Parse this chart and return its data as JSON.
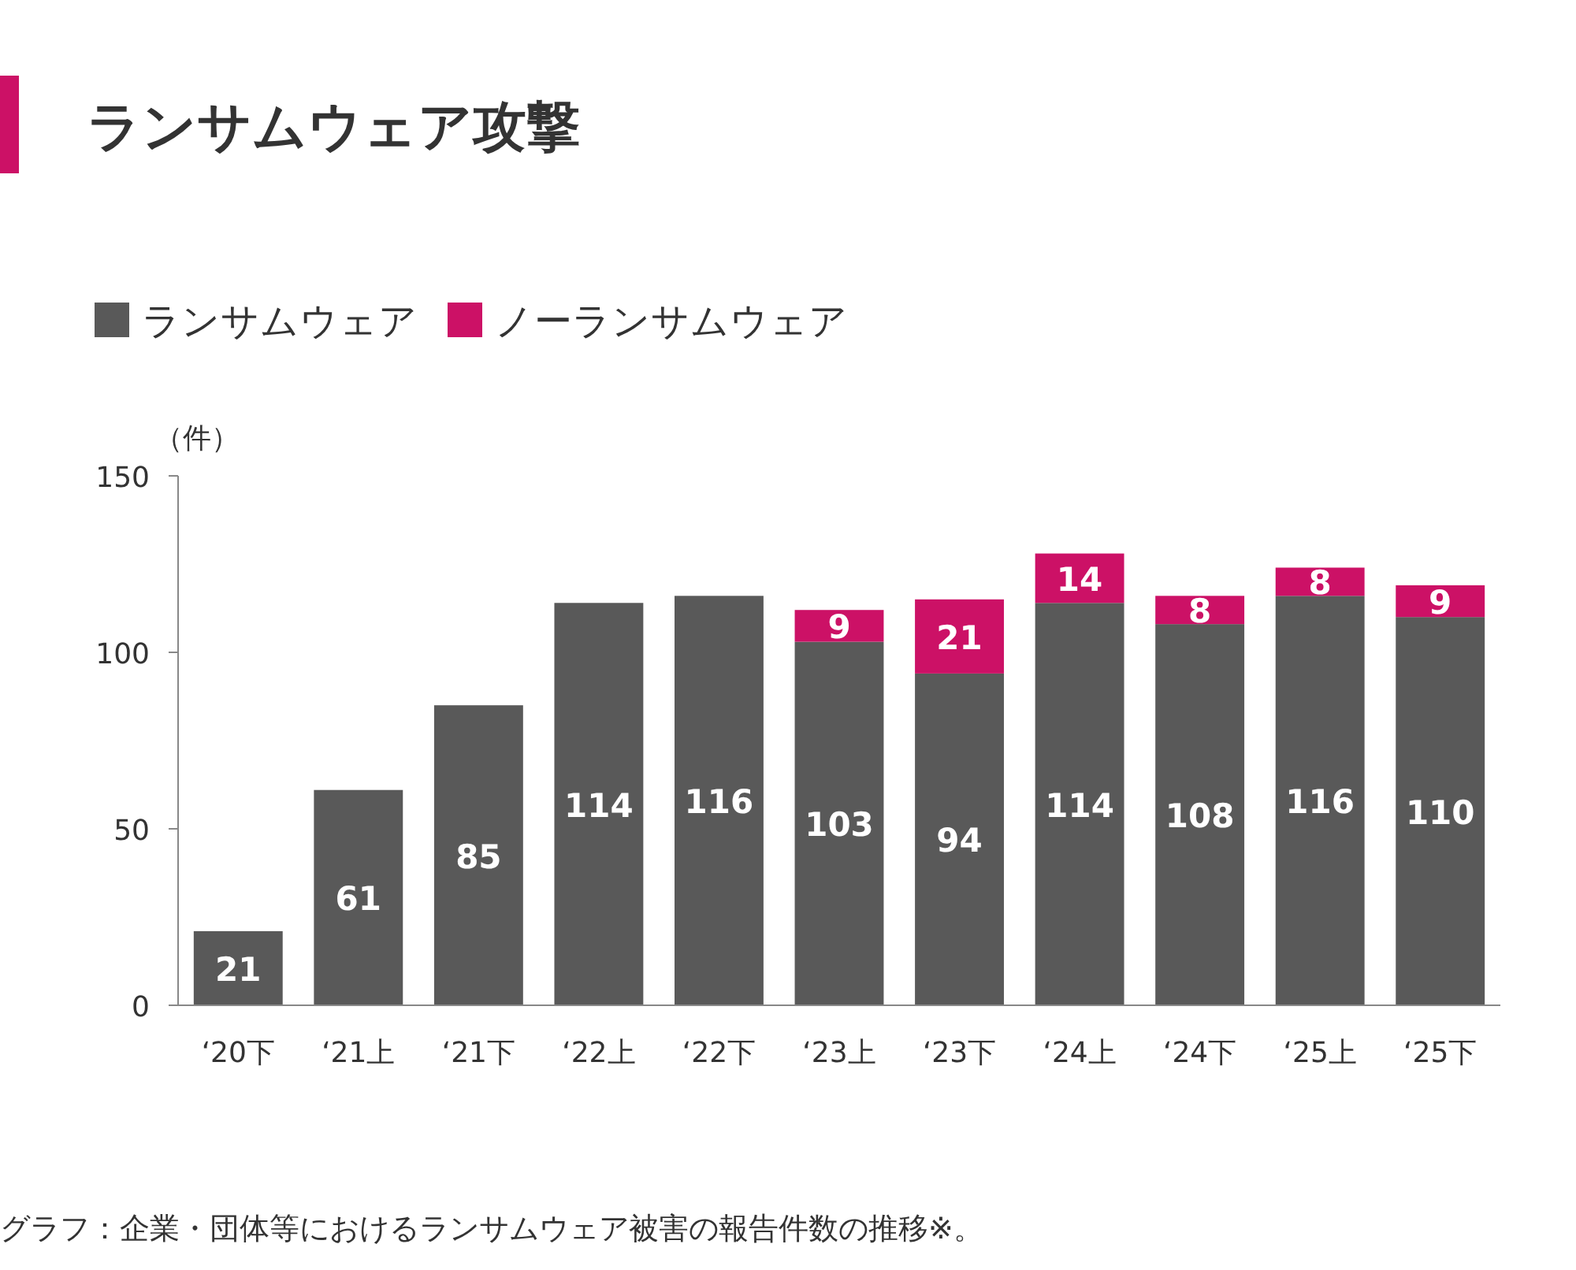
{
  "chart_data": {
    "type": "bar",
    "title": "ランサムウェア攻撃",
    "ylabel": "（件）",
    "stacked": true,
    "categories": [
      "‘20下",
      "‘21上",
      "‘21下",
      "‘22上",
      "‘22下",
      "‘23上",
      "‘23下",
      "‘24上",
      "‘24下",
      "‘25上",
      "‘25下"
    ],
    "series": [
      {
        "name": "ランサムウェア",
        "color": "#595959",
        "values": [
          21,
          61,
          85,
          114,
          116,
          103,
          94,
          114,
          108,
          116,
          110
        ]
      },
      {
        "name": "ノーランサムウェア",
        "color": "#cc1166",
        "values": [
          null,
          null,
          null,
          null,
          null,
          9,
          21,
          14,
          8,
          8,
          9
        ]
      }
    ],
    "ylim": [
      0,
      150
    ],
    "yticks": [
      0,
      50,
      100,
      150
    ],
    "data_labels": true,
    "legend": "top left",
    "annotations": [
      "グラフ：企業・団体等におけるランサムウェア被害の報告件数の推移※。"
    ]
  }
}
